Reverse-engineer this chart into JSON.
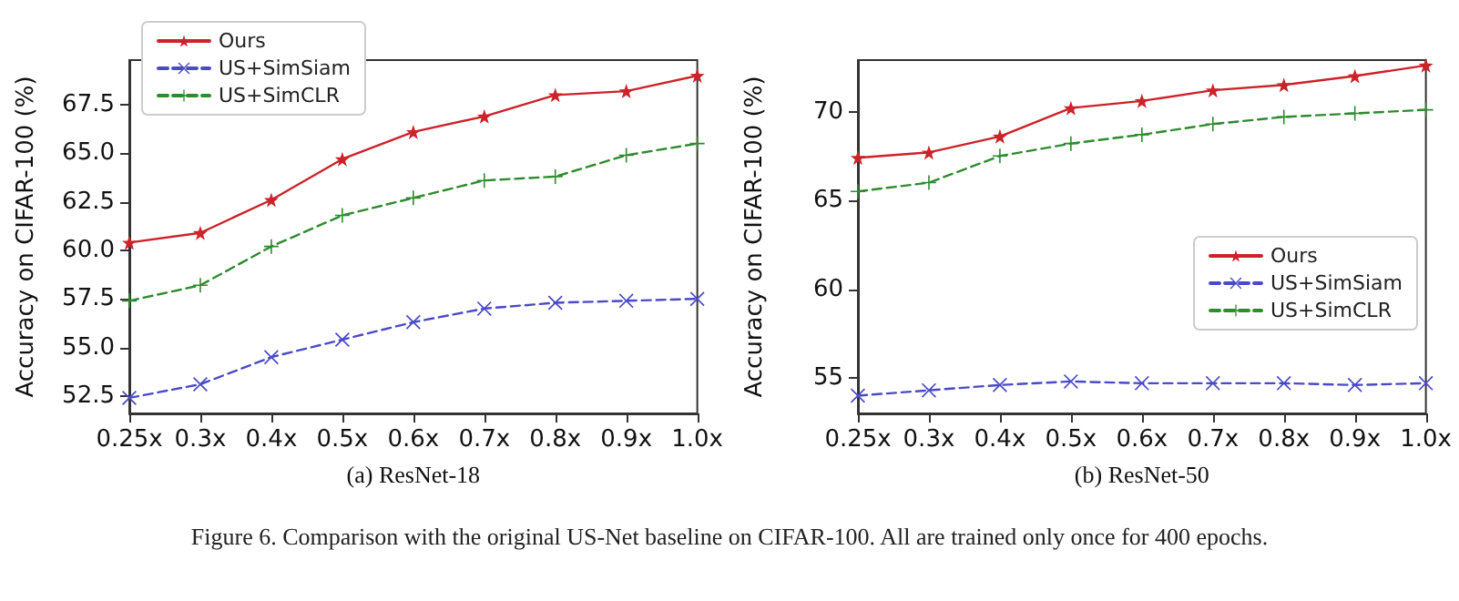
{
  "chart_data": [
    {
      "type": "line",
      "xlabel": "(a) ResNet-18",
      "ylabel": "Accuracy on CIFAR-100 (%)",
      "categories": [
        "0.25x",
        "0.3x",
        "0.4x",
        "0.5x",
        "0.6x",
        "0.7x",
        "0.8x",
        "0.9x",
        "1.0x"
      ],
      "series": [
        {
          "name": "Ours",
          "color": "#cc2229",
          "marker": "star",
          "line_style": "solid",
          "values": [
            60.4,
            60.9,
            62.6,
            64.7,
            66.1,
            66.9,
            68.0,
            68.2,
            69.0
          ]
        },
        {
          "name": "US+SimSiam",
          "color": "#4a4ac8",
          "marker": "cross",
          "line_style": "dashed",
          "values": [
            52.4,
            53.1,
            54.5,
            55.4,
            56.3,
            57.0,
            57.3,
            57.4,
            57.5
          ]
        },
        {
          "name": "US+SimCLR",
          "color": "#2e8b2e",
          "marker": "plus",
          "line_style": "dashed",
          "values": [
            57.4,
            58.2,
            60.2,
            61.8,
            62.7,
            63.6,
            63.8,
            64.9,
            65.5
          ]
        }
      ],
      "ylim": [
        51.6,
        69.8
      ],
      "yticks": [
        {
          "value": 52.5,
          "label": "52.5"
        },
        {
          "value": 55,
          "label": "55.0"
        },
        {
          "value": 57.5,
          "label": "57.5"
        },
        {
          "value": 60,
          "label": "60.0"
        },
        {
          "value": 62.5,
          "label": "62.5"
        },
        {
          "value": 65,
          "label": "65.0"
        },
        {
          "value": 67.5,
          "label": "67.5"
        }
      ],
      "legend": "top left",
      "grid": false,
      "annotations": [
        "Figure 6. Comparison with the original US-Net baseline on CIFAR-100. All are trained only once for 400 epochs."
      ]
    },
    {
      "type": "line",
      "xlabel": "(b) ResNet-50",
      "ylabel": "Accuracy on CIFAR-100 (%)",
      "categories": [
        "0.25x",
        "0.3x",
        "0.4x",
        "0.5x",
        "0.6x",
        "0.7x",
        "0.8x",
        "0.9x",
        "1.0x"
      ],
      "series": [
        {
          "name": "Ours",
          "color": "#cc2229",
          "marker": "star",
          "line_style": "solid",
          "values": [
            67.4,
            67.7,
            68.6,
            70.2,
            70.6,
            71.2,
            71.5,
            72.0,
            72.6
          ]
        },
        {
          "name": "US+SimSiam",
          "color": "#4a4ac8",
          "marker": "cross",
          "line_style": "dashed",
          "values": [
            54.0,
            54.3,
            54.6,
            54.8,
            54.7,
            54.7,
            54.7,
            54.6,
            54.7
          ]
        },
        {
          "name": "US+SimCLR",
          "color": "#2e8b2e",
          "marker": "plus",
          "line_style": "dashed",
          "values": [
            65.5,
            66.0,
            67.5,
            68.2,
            68.7,
            69.3,
            69.7,
            69.9,
            70.1
          ]
        }
      ],
      "ylim": [
        53.0,
        72.9
      ],
      "yticks": [
        55,
        60,
        65,
        70
      ],
      "legend": "right",
      "grid": false
    }
  ]
}
